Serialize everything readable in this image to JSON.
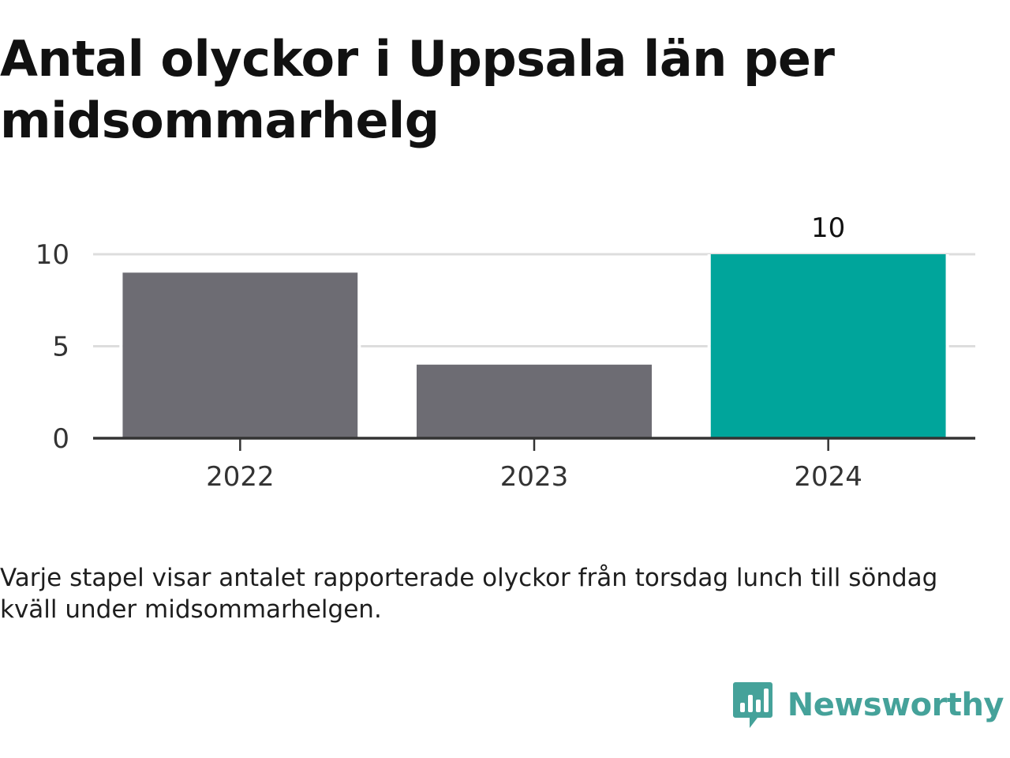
{
  "chart_data": {
    "type": "bar",
    "title": "Antal olyckor i Uppsala län per midsommarhelg",
    "categories": [
      "2022",
      "2023",
      "2024"
    ],
    "values": [
      9,
      4,
      10
    ],
    "value_labels": [
      "",
      "",
      "10"
    ],
    "highlight_index": 2,
    "colors": {
      "bar": "#6d6c73",
      "highlight": "#00a59b",
      "grid": "#dddddd",
      "axis": "#333333"
    },
    "ylim": [
      0,
      10
    ],
    "yticks": [
      "0",
      "5",
      "10"
    ],
    "grid": true,
    "xlabel": "",
    "ylabel": ""
  },
  "caption": "Varje stapel visar antalet rapporterade olyckor från torsdag lunch till söndag kväll under midsommarhelgen.",
  "brand": {
    "name": "Newsworthy",
    "icon": "newsworthy-logo-icon",
    "color": "#45a29a"
  }
}
